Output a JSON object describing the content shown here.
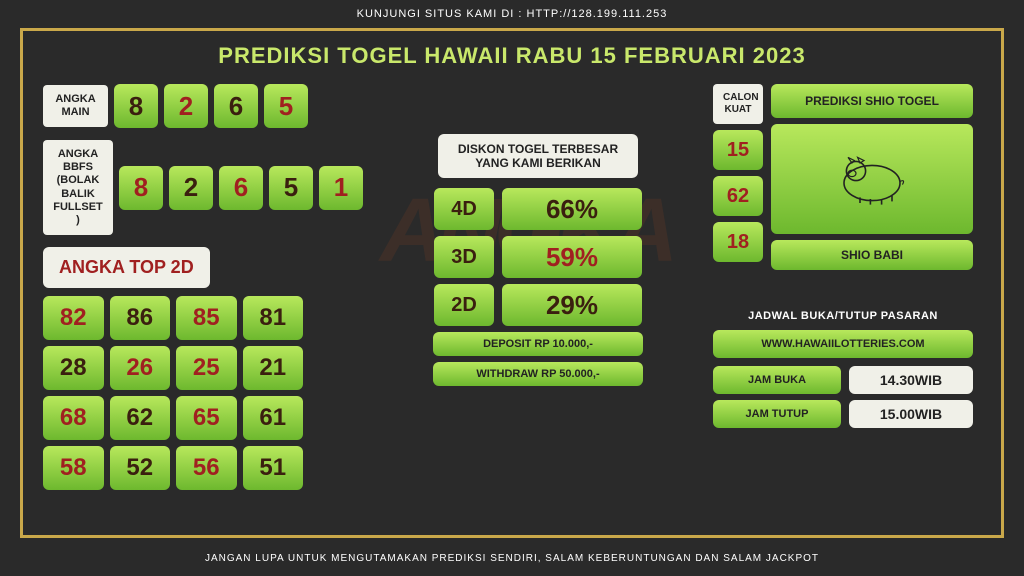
{
  "top_text": "KUNJUNGI SITUS KAMI DI : HTTP://128.199.111.253",
  "title": "PREDIKSI TOGEL HAWAII RABU 15 FEBRUARI 2023",
  "bottom_text": "JANGAN LUPA UNTUK MENGUTAMAKAN PREDIKSI SENDIRI, SALAM KEBERUNTUNGAN DAN SALAM JACKPOT",
  "angka_main": {
    "label": "ANGKA MAIN",
    "nums": [
      {
        "v": "8",
        "c": "dark"
      },
      {
        "v": "2",
        "c": "red"
      },
      {
        "v": "6",
        "c": "dark"
      },
      {
        "v": "5",
        "c": "red"
      }
    ]
  },
  "angka_bbfs": {
    "label": "ANGKA BBFS (BOLAK BALIK FULLSET )",
    "nums": [
      {
        "v": "8",
        "c": "red"
      },
      {
        "v": "2",
        "c": "dark"
      },
      {
        "v": "6",
        "c": "red"
      },
      {
        "v": "5",
        "c": "dark"
      },
      {
        "v": "1",
        "c": "red"
      }
    ]
  },
  "angka_top": {
    "label": "ANGKA TOP 2D",
    "cells": [
      {
        "v": "82",
        "c": "red"
      },
      {
        "v": "86",
        "c": "dark"
      },
      {
        "v": "85",
        "c": "red"
      },
      {
        "v": "81",
        "c": "dark"
      },
      {
        "v": "28",
        "c": "dark"
      },
      {
        "v": "26",
        "c": "red"
      },
      {
        "v": "25",
        "c": "red"
      },
      {
        "v": "21",
        "c": "dark"
      },
      {
        "v": "68",
        "c": "red"
      },
      {
        "v": "62",
        "c": "dark"
      },
      {
        "v": "65",
        "c": "red"
      },
      {
        "v": "61",
        "c": "dark"
      },
      {
        "v": "58",
        "c": "red"
      },
      {
        "v": "52",
        "c": "dark"
      },
      {
        "v": "56",
        "c": "red"
      },
      {
        "v": "51",
        "c": "dark"
      }
    ]
  },
  "diskon": {
    "title": "DISKON TOGEL TERBESAR YANG KAMI BERIKAN",
    "rows": [
      {
        "label": "4D",
        "val": "66%",
        "c": "dark"
      },
      {
        "label": "3D",
        "val": "59%",
        "c": "red"
      },
      {
        "label": "2D",
        "val": "29%",
        "c": "dark"
      }
    ],
    "deposit": "DEPOSIT RP 10.000,-",
    "withdraw": "WITHDRAW RP 50.000,-"
  },
  "calon": {
    "label": "CALON KUAT",
    "nums": [
      "15",
      "62",
      "18"
    ]
  },
  "shio": {
    "title": "PREDIKSI SHIO TOGEL",
    "name": "SHIO BABI"
  },
  "schedule": {
    "title": "JADWAL BUKA/TUTUP PASARAN",
    "url": "WWW.HAWAIILOTTERIES.COM",
    "open_label": "JAM BUKA",
    "open_val": "14.30WIB",
    "close_label": "JAM TUTUP",
    "close_val": "15.00WIB"
  },
  "watermark": "ANGKA"
}
